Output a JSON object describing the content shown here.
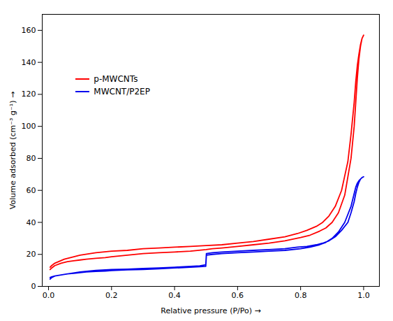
{
  "chart_data": {
    "type": "line",
    "xlabel": "Relative pressure (P/Po)",
    "ylabel": "Volume adsorbed (cm⁻³ g⁻¹)",
    "xlim": [
      -0.02,
      1.05
    ],
    "ylim": [
      0,
      170
    ],
    "xticks": [
      {
        "value": 0.0,
        "label": "0.0"
      },
      0.2,
      0.4,
      0.6,
      0.8,
      {
        "value": 1.0,
        "label": "1.0"
      }
    ],
    "yticks": [
      0,
      20,
      40,
      60,
      80,
      100,
      120,
      140,
      160
    ],
    "grid": false,
    "legend": "upper left",
    "series": [
      {
        "name": "p-MWCNTs",
        "color": "#FF0000",
        "x": [
          0.005,
          0.01,
          0.02,
          0.04,
          0.06,
          0.08,
          0.1,
          0.12,
          0.15,
          0.18,
          0.2,
          0.25,
          0.3,
          0.35,
          0.4,
          0.45,
          0.5,
          0.52,
          0.55,
          0.6,
          0.65,
          0.7,
          0.75,
          0.8,
          0.83,
          0.86,
          0.88,
          0.9,
          0.92,
          0.94,
          0.96,
          0.97,
          0.975,
          0.98,
          0.985,
          0.99,
          0.995,
          1.0,
          1.0,
          0.995,
          0.99,
          0.985,
          0.98,
          0.975,
          0.97,
          0.96,
          0.95,
          0.93,
          0.91,
          0.89,
          0.87,
          0.85,
          0.82,
          0.79,
          0.75,
          0.7,
          0.65,
          0.6,
          0.55,
          0.5,
          0.45,
          0.4,
          0.35,
          0.3,
          0.25,
          0.2,
          0.15,
          0.1,
          0.05,
          0.02,
          0.01,
          0.005
        ],
        "values": [
          10.5,
          11.5,
          13.0,
          14.5,
          15.5,
          16.0,
          16.5,
          17.0,
          17.5,
          18.0,
          18.5,
          19.5,
          20.5,
          21.0,
          21.5,
          22.0,
          23.0,
          23.5,
          24.0,
          25.0,
          26.0,
          27.0,
          28.5,
          30.5,
          32.0,
          34.5,
          36.5,
          40.0,
          46.0,
          57.0,
          80.0,
          100.0,
          115.0,
          130.0,
          142.0,
          150.0,
          155.0,
          157.0,
          157.0,
          155.0,
          151.0,
          145.0,
          138.0,
          128.0,
          115.0,
          95.0,
          78.0,
          60.0,
          50.0,
          44.0,
          40.0,
          37.5,
          35.0,
          33.0,
          31.0,
          29.5,
          28.0,
          27.0,
          26.0,
          25.5,
          25.0,
          24.5,
          24.0,
          23.5,
          22.5,
          22.0,
          21.0,
          19.5,
          17.0,
          14.5,
          13.0,
          12.0
        ]
      },
      {
        "name": "MWCNT/P2EP",
        "color": "#0000EE",
        "x": [
          0.005,
          0.01,
          0.02,
          0.04,
          0.06,
          0.08,
          0.1,
          0.12,
          0.15,
          0.18,
          0.2,
          0.25,
          0.3,
          0.35,
          0.4,
          0.45,
          0.48,
          0.499,
          0.501,
          0.52,
          0.55,
          0.6,
          0.65,
          0.7,
          0.75,
          0.8,
          0.83,
          0.86,
          0.88,
          0.9,
          0.92,
          0.94,
          0.96,
          0.97,
          0.975,
          0.98,
          0.985,
          0.99,
          0.995,
          1.0,
          1.0,
          0.995,
          0.99,
          0.985,
          0.98,
          0.975,
          0.97,
          0.96,
          0.95,
          0.93,
          0.91,
          0.89,
          0.87,
          0.85,
          0.82,
          0.79,
          0.75,
          0.7,
          0.65,
          0.6,
          0.55,
          0.52,
          0.501,
          0.499,
          0.48,
          0.45,
          0.4,
          0.35,
          0.3,
          0.25,
          0.2,
          0.15,
          0.1,
          0.05,
          0.02,
          0.01,
          0.005
        ],
        "values": [
          4.5,
          5.5,
          6.5,
          7.2,
          7.8,
          8.2,
          8.6,
          9.0,
          9.3,
          9.6,
          9.9,
          10.3,
          10.6,
          11.0,
          11.5,
          12.0,
          12.3,
          12.5,
          19.5,
          20.0,
          20.5,
          21.0,
          21.5,
          22.0,
          22.5,
          23.5,
          24.5,
          26.0,
          27.5,
          30.0,
          34.0,
          40.0,
          50.0,
          58.0,
          62.0,
          64.5,
          66.0,
          67.0,
          68.0,
          68.5,
          68.5,
          68.0,
          67.0,
          65.0,
          62.0,
          58.0,
          53.0,
          46.0,
          40.0,
          35.0,
          31.0,
          28.5,
          27.0,
          26.0,
          25.0,
          24.5,
          23.5,
          23.0,
          22.5,
          22.0,
          21.5,
          21.0,
          20.5,
          13.5,
          12.8,
          12.5,
          12.0,
          11.5,
          11.2,
          10.8,
          10.5,
          10.0,
          9.0,
          7.5,
          6.5,
          6.0,
          5.5
        ]
      }
    ]
  }
}
